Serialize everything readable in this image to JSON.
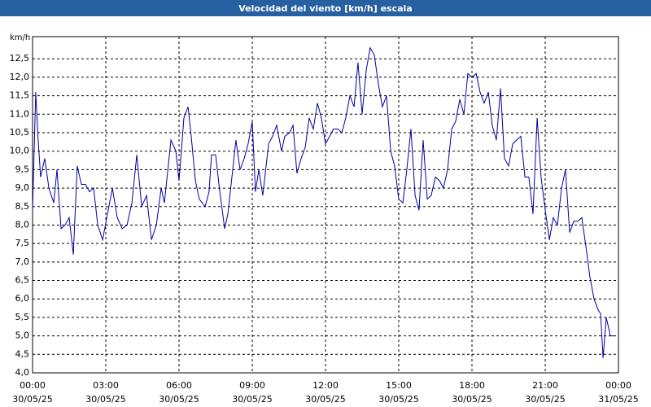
{
  "chart_data": {
    "type": "line",
    "title": "Velocidad del viento [km/h] escala",
    "y_label": "km/h",
    "x": [
      0,
      0.13,
      0.23,
      0.33,
      0.5,
      0.67,
      0.87,
      1,
      1.17,
      1.33,
      1.5,
      1.67,
      1.83,
      2,
      2.17,
      2.33,
      2.5,
      2.67,
      2.87,
      3.07,
      3.27,
      3.47,
      3.67,
      3.87,
      4.07,
      4.27,
      4.47,
      4.67,
      4.87,
      5.07,
      5.27,
      5.4,
      5.67,
      5.87,
      6,
      6.2,
      6.37,
      6.5,
      6.67,
      6.83,
      7.07,
      7.23,
      7.33,
      7.5,
      7.67,
      7.87,
      8,
      8.2,
      8.33,
      8.5,
      8.67,
      8.83,
      9,
      9.13,
      9.27,
      9.43,
      9.67,
      9.83,
      10,
      10.2,
      10.33,
      10.53,
      10.67,
      10.83,
      11,
      11.17,
      11.33,
      11.5,
      11.67,
      11.83,
      12,
      12.17,
      12.33,
      12.5,
      12.67,
      12.83,
      13,
      13.17,
      13.33,
      13.5,
      13.67,
      13.83,
      14,
      14.17,
      14.33,
      14.5,
      14.67,
      14.83,
      15,
      15.17,
      15.33,
      15.5,
      15.67,
      15.83,
      16,
      16.17,
      16.33,
      16.5,
      16.67,
      16.83,
      17,
      17.17,
      17.33,
      17.5,
      17.67,
      17.83,
      18,
      18.17,
      18.33,
      18.5,
      18.67,
      18.83,
      19,
      19.17,
      19.33,
      19.5,
      19.67,
      19.83,
      20,
      20.17,
      20.33,
      20.5,
      20.67,
      20.83,
      21,
      21.17,
      21.33,
      21.5,
      21.67,
      21.83,
      22,
      22.17,
      22.33,
      22.5,
      22.67,
      22.83,
      23,
      23.17,
      23.27,
      23.37,
      23.5,
      23.67,
      23.83
    ],
    "series": [
      {
        "name": "Velocidad del viento",
        "color": "#0000a0",
        "values": [
          8.4,
          11.6,
          10.3,
          9.3,
          9.8,
          9.0,
          8.6,
          9.5,
          7.9,
          8.0,
          8.2,
          7.2,
          9.6,
          9.1,
          9.1,
          8.9,
          9.0,
          8.0,
          7.6,
          8.3,
          9.0,
          8.2,
          7.9,
          8.0,
          8.6,
          9.9,
          8.5,
          8.8,
          7.6,
          8.0,
          9.0,
          8.6,
          10.3,
          10.0,
          9.2,
          10.9,
          11.2,
          10.4,
          9.2,
          8.7,
          8.5,
          8.9,
          9.9,
          9.9,
          8.9,
          7.9,
          8.3,
          9.5,
          10.3,
          9.5,
          9.8,
          10.2,
          10.8,
          8.9,
          9.5,
          8.8,
          10.2,
          10.4,
          10.7,
          10.0,
          10.4,
          10.5,
          10.7,
          9.4,
          9.8,
          10.1,
          10.9,
          10.6,
          11.3,
          10.9,
          10.2,
          10.4,
          10.6,
          10.6,
          10.5,
          10.9,
          11.5,
          11.2,
          12.4,
          11.0,
          12.2,
          12.8,
          12.6,
          11.8,
          11.2,
          11.5,
          10.0,
          9.6,
          8.7,
          8.6,
          9.5,
          10.6,
          8.8,
          8.4,
          10.3,
          8.7,
          8.8,
          9.3,
          9.2,
          9.0,
          9.5,
          10.6,
          10.8,
          11.4,
          11.0,
          12.1,
          12.0,
          12.1,
          11.6,
          11.3,
          11.6,
          10.7,
          10.3,
          11.7,
          9.8,
          9.6,
          10.2,
          10.3,
          10.4,
          9.3,
          9.3,
          8.3,
          10.9,
          9.3,
          8.4,
          7.6,
          8.2,
          8.0,
          9.0,
          9.5,
          7.8,
          8.1,
          8.1,
          8.2,
          7.4,
          6.6,
          6.0,
          5.7,
          5.6,
          4.4,
          5.5,
          5.0,
          5.0
        ]
      }
    ],
    "xlim": [
      0,
      24
    ],
    "xticks": [
      {
        "value": 0,
        "label": "00:00",
        "date": "30/05/25"
      },
      {
        "value": 3,
        "label": "03:00",
        "date": "30/05/25"
      },
      {
        "value": 6,
        "label": "06:00",
        "date": "30/05/25"
      },
      {
        "value": 9,
        "label": "09:00",
        "date": "30/05/25"
      },
      {
        "value": 12,
        "label": "12:00",
        "date": "30/05/25"
      },
      {
        "value": 15,
        "label": "15:00",
        "date": "30/05/25"
      },
      {
        "value": 18,
        "label": "18:00",
        "date": "30/05/25"
      },
      {
        "value": 21,
        "label": "21:00",
        "date": "30/05/25"
      },
      {
        "value": 24,
        "label": "00:00",
        "date": "31/05/25"
      }
    ],
    "ylim": [
      4.0,
      13.1
    ],
    "yticks": [
      {
        "value": 4.0,
        "label": "4,0"
      },
      {
        "value": 4.5,
        "label": "4,5"
      },
      {
        "value": 5.0,
        "label": "5,0"
      },
      {
        "value": 5.5,
        "label": "5,5"
      },
      {
        "value": 6.0,
        "label": "6,0"
      },
      {
        "value": 6.5,
        "label": "6,5"
      },
      {
        "value": 7.0,
        "label": "7,0"
      },
      {
        "value": 7.5,
        "label": "7,5"
      },
      {
        "value": 8.0,
        "label": "8,0"
      },
      {
        "value": 8.5,
        "label": "8,5"
      },
      {
        "value": 9.0,
        "label": "9,0"
      },
      {
        "value": 9.5,
        "label": "9,5"
      },
      {
        "value": 10.0,
        "label": "10,0"
      },
      {
        "value": 10.5,
        "label": "10,5"
      },
      {
        "value": 11.0,
        "label": "11,0"
      },
      {
        "value": 11.5,
        "label": "11,5"
      },
      {
        "value": 12.0,
        "label": "12,0"
      },
      {
        "value": 12.5,
        "label": "12,5"
      }
    ],
    "grid": true
  }
}
